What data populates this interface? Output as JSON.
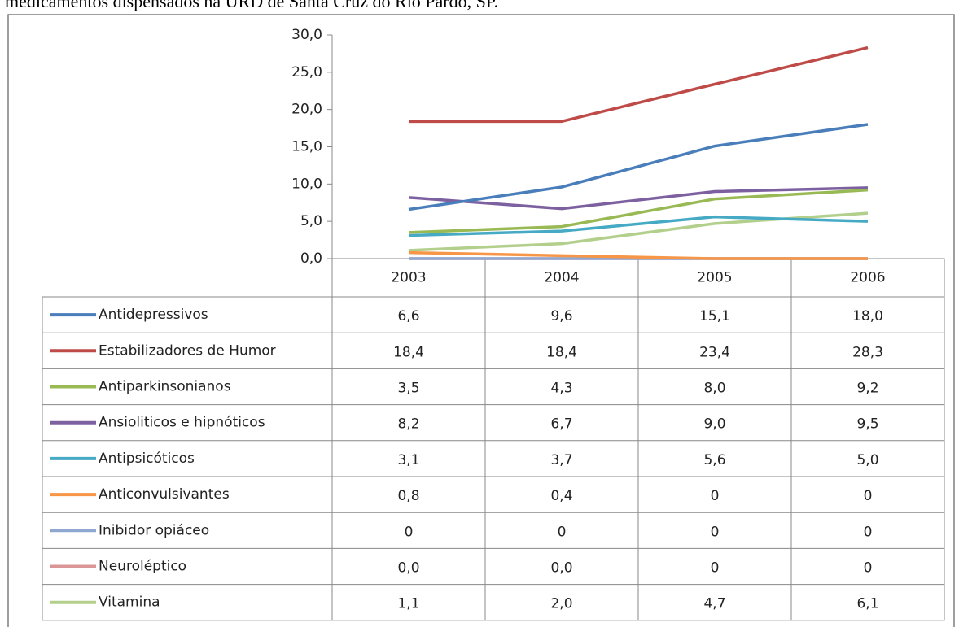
{
  "chart_data": {
    "type": "line",
    "caption": "medicamentos dispensados na URD de Santa Cruz do Rio Pardo, SP.",
    "categories": [
      "2003",
      "2004",
      "2005",
      "2006"
    ],
    "ylim": [
      0,
      30
    ],
    "yticks": [
      {
        "value": 0,
        "label": "0,0"
      },
      {
        "value": 5,
        "label": "5,0"
      },
      {
        "value": 10,
        "label": "10,0"
      },
      {
        "value": 15,
        "label": "15,0"
      },
      {
        "value": 20,
        "label": "20,0"
      },
      {
        "value": 25,
        "label": "25,0"
      },
      {
        "value": 30,
        "label": "30,0"
      }
    ],
    "series": [
      {
        "name": "Antidepressivos",
        "color": "#4a7ebb",
        "values": [
          6.6,
          9.6,
          15.1,
          18.0
        ],
        "value_labels": [
          "6,6",
          "9,6",
          "15,1",
          "18,0"
        ]
      },
      {
        "name": "Estabilizadores de Humor",
        "color": "#be4b48",
        "values": [
          18.4,
          18.4,
          23.4,
          28.3
        ],
        "value_labels": [
          "18,4",
          "18,4",
          "23,4",
          "28,3"
        ]
      },
      {
        "name": "Antiparkinsonianos",
        "color": "#98b954",
        "values": [
          3.5,
          4.3,
          8.0,
          9.2
        ],
        "value_labels": [
          "3,5",
          "4,3",
          "8,0",
          "9,2"
        ]
      },
      {
        "name": "Ansioliticos e hipnóticos",
        "color": "#7d60a0",
        "values": [
          8.2,
          6.7,
          9.0,
          9.5
        ],
        "value_labels": [
          "8,2",
          "6,7",
          "9,0",
          "9,5"
        ]
      },
      {
        "name": "Antipsicóticos",
        "color": "#46aac5",
        "values": [
          3.1,
          3.7,
          5.6,
          5.0
        ],
        "value_labels": [
          "3,1",
          "3,7",
          "5,6",
          "5,0"
        ]
      },
      {
        "name": "Anticonvulsivantes",
        "color": "#f79646",
        "values": [
          0.8,
          0.4,
          0,
          0
        ],
        "value_labels": [
          "0,8",
          "0,4",
          "0",
          "0"
        ]
      },
      {
        "name": "Inibidor opiáceo",
        "color": "#8ea8d2",
        "values": [
          0,
          0,
          0,
          0
        ],
        "value_labels": [
          "0",
          "0",
          "0",
          "0"
        ]
      },
      {
        "name": "Neuroléptico",
        "color": "#d99694",
        "values": [
          0,
          0,
          0,
          0
        ],
        "value_labels": [
          "0,0",
          "0,0",
          "0",
          "0"
        ]
      },
      {
        "name": "Vitamina",
        "color": "#b3cf8c",
        "values": [
          1.1,
          2.0,
          4.7,
          6.1
        ],
        "value_labels": [
          "1,1",
          "2,0",
          "4,7",
          "6,1"
        ]
      }
    ]
  }
}
